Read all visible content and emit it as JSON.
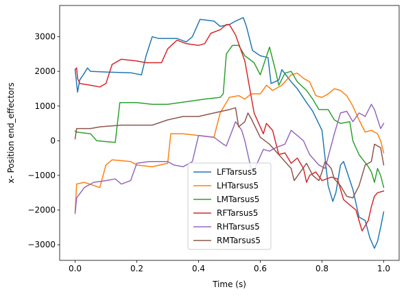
{
  "chart_data": {
    "type": "line",
    "title": "",
    "xlabel": "Time (s)",
    "ylabel": "x- Position end_effectors",
    "xlim": [
      -0.05,
      1.05
    ],
    "ylim": [
      -3450,
      3900
    ],
    "x_ticks": [
      0.0,
      0.2,
      0.4,
      0.6,
      0.8,
      1.0
    ],
    "x_tick_labels": [
      "0.0",
      "0.2",
      "0.4",
      "0.6",
      "0.8",
      "1.0"
    ],
    "y_ticks": [
      -3000,
      -2000,
      -1000,
      0,
      1000,
      2000,
      3000
    ],
    "y_tick_labels": [
      "−3000",
      "−2000",
      "−1000",
      "0",
      "1000",
      "2000",
      "3000"
    ],
    "grid": false,
    "legend_position": "lower center",
    "series": [
      {
        "name": "LFTarsus5",
        "color": "#1f77b4",
        "points": [
          [
            0.0,
            2050
          ],
          [
            0.008,
            1400
          ],
          [
            0.015,
            1750
          ],
          [
            0.03,
            1950
          ],
          [
            0.04,
            2100
          ],
          [
            0.05,
            2000
          ],
          [
            0.1,
            1980
          ],
          [
            0.18,
            1960
          ],
          [
            0.215,
            1900
          ],
          [
            0.23,
            2450
          ],
          [
            0.25,
            3000
          ],
          [
            0.27,
            2950
          ],
          [
            0.33,
            2950
          ],
          [
            0.36,
            2850
          ],
          [
            0.38,
            3000
          ],
          [
            0.39,
            3200
          ],
          [
            0.405,
            3500
          ],
          [
            0.45,
            3450
          ],
          [
            0.47,
            3300
          ],
          [
            0.5,
            3350
          ],
          [
            0.52,
            3450
          ],
          [
            0.545,
            3550
          ],
          [
            0.555,
            3300
          ],
          [
            0.575,
            2600
          ],
          [
            0.6,
            2450
          ],
          [
            0.625,
            2400
          ],
          [
            0.635,
            1650
          ],
          [
            0.66,
            1750
          ],
          [
            0.67,
            2050
          ],
          [
            0.7,
            1700
          ],
          [
            0.72,
            1500
          ],
          [
            0.75,
            1100
          ],
          [
            0.77,
            850
          ],
          [
            0.8,
            300
          ],
          [
            0.81,
            -500
          ],
          [
            0.82,
            -1300
          ],
          [
            0.835,
            -1750
          ],
          [
            0.845,
            -1500
          ],
          [
            0.86,
            -700
          ],
          [
            0.87,
            -600
          ],
          [
            0.9,
            -1400
          ],
          [
            0.92,
            -2200
          ],
          [
            0.94,
            -2300
          ],
          [
            0.955,
            -2800
          ],
          [
            0.97,
            -3100
          ],
          [
            0.98,
            -2900
          ],
          [
            0.99,
            -2500
          ],
          [
            1.0,
            -2050
          ]
        ]
      },
      {
        "name": "LHTarsus5",
        "color": "#ff7f0e",
        "points": [
          [
            0.0,
            -2050
          ],
          [
            0.005,
            -1250
          ],
          [
            0.03,
            -1200
          ],
          [
            0.08,
            -1350
          ],
          [
            0.1,
            -700
          ],
          [
            0.12,
            -550
          ],
          [
            0.18,
            -600
          ],
          [
            0.2,
            -700
          ],
          [
            0.25,
            -750
          ],
          [
            0.3,
            -650
          ],
          [
            0.31,
            200
          ],
          [
            0.35,
            200
          ],
          [
            0.4,
            150
          ],
          [
            0.45,
            100
          ],
          [
            0.47,
            800
          ],
          [
            0.5,
            1250
          ],
          [
            0.53,
            1300
          ],
          [
            0.55,
            1200
          ],
          [
            0.57,
            1350
          ],
          [
            0.6,
            1350
          ],
          [
            0.62,
            1600
          ],
          [
            0.64,
            1450
          ],
          [
            0.67,
            1600
          ],
          [
            0.7,
            1900
          ],
          [
            0.72,
            1950
          ],
          [
            0.74,
            1800
          ],
          [
            0.76,
            1700
          ],
          [
            0.78,
            1300
          ],
          [
            0.8,
            1250
          ],
          [
            0.82,
            1350
          ],
          [
            0.84,
            1500
          ],
          [
            0.86,
            1450
          ],
          [
            0.88,
            1300
          ],
          [
            0.9,
            1000
          ],
          [
            0.92,
            600
          ],
          [
            0.94,
            250
          ],
          [
            0.96,
            300
          ],
          [
            0.98,
            200
          ],
          [
            0.99,
            0
          ],
          [
            1.0,
            -350
          ]
        ]
      },
      {
        "name": "LMTarsus5",
        "color": "#2ca02c",
        "points": [
          [
            0.0,
            280
          ],
          [
            0.005,
            250
          ],
          [
            0.05,
            200
          ],
          [
            0.07,
            0
          ],
          [
            0.13,
            -50
          ],
          [
            0.145,
            1100
          ],
          [
            0.2,
            1100
          ],
          [
            0.25,
            1050
          ],
          [
            0.3,
            1050
          ],
          [
            0.34,
            1100
          ],
          [
            0.42,
            1200
          ],
          [
            0.47,
            1250
          ],
          [
            0.48,
            1350
          ],
          [
            0.49,
            2500
          ],
          [
            0.51,
            2750
          ],
          [
            0.53,
            2750
          ],
          [
            0.55,
            2450
          ],
          [
            0.58,
            2250
          ],
          [
            0.6,
            1900
          ],
          [
            0.63,
            2700
          ],
          [
            0.65,
            2000
          ],
          [
            0.66,
            1600
          ],
          [
            0.68,
            1950
          ],
          [
            0.7,
            2000
          ],
          [
            0.72,
            1700
          ],
          [
            0.75,
            1450
          ],
          [
            0.77,
            1200
          ],
          [
            0.79,
            900
          ],
          [
            0.82,
            900
          ],
          [
            0.84,
            600
          ],
          [
            0.86,
            500
          ],
          [
            0.89,
            550
          ],
          [
            0.9,
            0
          ],
          [
            0.92,
            -400
          ],
          [
            0.95,
            -750
          ],
          [
            0.96,
            -900
          ],
          [
            0.97,
            -1200
          ],
          [
            0.98,
            -800
          ],
          [
            0.99,
            -1000
          ],
          [
            1.0,
            -1350
          ]
        ]
      },
      {
        "name": "RFTarsus5",
        "color": "#d62728",
        "points": [
          [
            0.0,
            2050
          ],
          [
            0.005,
            2100
          ],
          [
            0.008,
            1800
          ],
          [
            0.015,
            1650
          ],
          [
            0.05,
            1600
          ],
          [
            0.08,
            1550
          ],
          [
            0.1,
            1650
          ],
          [
            0.12,
            2200
          ],
          [
            0.15,
            2350
          ],
          [
            0.2,
            2300
          ],
          [
            0.23,
            2250
          ],
          [
            0.28,
            2250
          ],
          [
            0.3,
            2650
          ],
          [
            0.33,
            2900
          ],
          [
            0.36,
            2800
          ],
          [
            0.4,
            2750
          ],
          [
            0.42,
            2800
          ],
          [
            0.44,
            3100
          ],
          [
            0.47,
            3200
          ],
          [
            0.49,
            3350
          ],
          [
            0.5,
            3350
          ],
          [
            0.52,
            3050
          ],
          [
            0.55,
            2300
          ],
          [
            0.58,
            800
          ],
          [
            0.6,
            400
          ],
          [
            0.61,
            200
          ],
          [
            0.62,
            500
          ],
          [
            0.64,
            300
          ],
          [
            0.66,
            -400
          ],
          [
            0.68,
            -350
          ],
          [
            0.7,
            -650
          ],
          [
            0.72,
            -500
          ],
          [
            0.74,
            -800
          ],
          [
            0.75,
            -1200
          ],
          [
            0.76,
            -1000
          ],
          [
            0.78,
            -900
          ],
          [
            0.8,
            -1150
          ],
          [
            0.83,
            -1050
          ],
          [
            0.85,
            -1100
          ],
          [
            0.87,
            -1700
          ],
          [
            0.89,
            -1850
          ],
          [
            0.91,
            -2000
          ],
          [
            0.93,
            -2600
          ],
          [
            0.95,
            -2300
          ],
          [
            0.96,
            -1900
          ],
          [
            0.97,
            -1600
          ],
          [
            0.98,
            -1500
          ],
          [
            1.0,
            -1450
          ]
        ]
      },
      {
        "name": "RHTarsus5",
        "color": "#9467bd",
        "points": [
          [
            0.0,
            -2100
          ],
          [
            0.005,
            -1650
          ],
          [
            0.03,
            -1350
          ],
          [
            0.06,
            -1200
          ],
          [
            0.1,
            -1150
          ],
          [
            0.13,
            -1100
          ],
          [
            0.15,
            -1250
          ],
          [
            0.18,
            -1150
          ],
          [
            0.2,
            -650
          ],
          [
            0.24,
            -600
          ],
          [
            0.3,
            -600
          ],
          [
            0.32,
            -700
          ],
          [
            0.35,
            -750
          ],
          [
            0.38,
            -600
          ],
          [
            0.4,
            150
          ],
          [
            0.45,
            100
          ],
          [
            0.48,
            -100
          ],
          [
            0.49,
            -150
          ],
          [
            0.52,
            550
          ],
          [
            0.54,
            300
          ],
          [
            0.55,
            0
          ],
          [
            0.57,
            -800
          ],
          [
            0.58,
            -850
          ],
          [
            0.61,
            -250
          ],
          [
            0.63,
            -300
          ],
          [
            0.65,
            -200
          ],
          [
            0.68,
            -100
          ],
          [
            0.7,
            300
          ],
          [
            0.72,
            150
          ],
          [
            0.74,
            0
          ],
          [
            0.76,
            -400
          ],
          [
            0.79,
            -700
          ],
          [
            0.81,
            -800
          ],
          [
            0.84,
            200
          ],
          [
            0.86,
            800
          ],
          [
            0.88,
            850
          ],
          [
            0.9,
            550
          ],
          [
            0.92,
            800
          ],
          [
            0.94,
            700
          ],
          [
            0.96,
            1050
          ],
          [
            0.97,
            900
          ],
          [
            0.99,
            350
          ],
          [
            1.0,
            500
          ]
        ]
      },
      {
        "name": "RMTarsus5",
        "color": "#8c564b",
        "points": [
          [
            0.0,
            50
          ],
          [
            0.005,
            350
          ],
          [
            0.05,
            350
          ],
          [
            0.08,
            400
          ],
          [
            0.15,
            450
          ],
          [
            0.2,
            450
          ],
          [
            0.25,
            450
          ],
          [
            0.3,
            600
          ],
          [
            0.35,
            700
          ],
          [
            0.4,
            700
          ],
          [
            0.45,
            800
          ],
          [
            0.5,
            900
          ],
          [
            0.52,
            950
          ],
          [
            0.53,
            400
          ],
          [
            0.55,
            550
          ],
          [
            0.56,
            800
          ],
          [
            0.57,
            650
          ],
          [
            0.6,
            100
          ],
          [
            0.63,
            -100
          ],
          [
            0.67,
            -500
          ],
          [
            0.7,
            -800
          ],
          [
            0.71,
            -1150
          ],
          [
            0.73,
            -900
          ],
          [
            0.75,
            -650
          ],
          [
            0.77,
            -1000
          ],
          [
            0.79,
            -1150
          ],
          [
            0.8,
            -900
          ],
          [
            0.81,
            -600
          ],
          [
            0.83,
            -800
          ],
          [
            0.84,
            -1100
          ],
          [
            0.86,
            -1300
          ],
          [
            0.88,
            -1600
          ],
          [
            0.9,
            -1650
          ],
          [
            0.92,
            -1300
          ],
          [
            0.94,
            -700
          ],
          [
            0.96,
            -600
          ],
          [
            0.97,
            -100
          ],
          [
            0.99,
            -200
          ],
          [
            1.0,
            -700
          ]
        ]
      }
    ]
  }
}
